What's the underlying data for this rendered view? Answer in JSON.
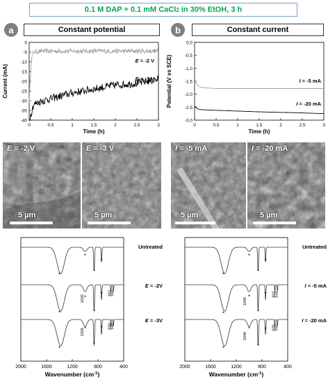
{
  "figure": {
    "title_main": "0.1 M DAP + 0.1 mM CaCl",
    "title_sub": "2",
    "title_rest": " in 30% EtOH, 3 h",
    "title_color": "#00a651"
  },
  "panel_a": {
    "letter": "a",
    "header": "Constant potential",
    "sem": [
      {
        "var": "E",
        "value": " = -2 V",
        "scale": "5 µm"
      },
      {
        "var": "E",
        "value": " = -3 V",
        "scale": "5 µm"
      }
    ],
    "ftir_curve_labels": [
      "Untreated",
      "E = -2V",
      "E = -3V"
    ],
    "ftir_annotations": {
      "peaks_2v": [
        "1026",
        "602",
        "560"
      ],
      "peaks_3v": [
        "1026",
        "600",
        "560"
      ]
    }
  },
  "panel_b": {
    "letter": "b",
    "header": "Constant current",
    "sem": [
      {
        "var": "I",
        "value": " = -5 mA",
        "scale": "5 µm"
      },
      {
        "var": "I",
        "value": " = -20 mA",
        "scale": "5 µm"
      }
    ],
    "ftir_curve_labels": [
      "Untreated",
      "I = -5 mA",
      "I = -20 mA"
    ],
    "ftir_annotations": {
      "peaks_5": [
        "1049",
        "602",
        "559"
      ],
      "peaks_20": [
        "1049",
        "600",
        "560"
      ]
    }
  },
  "chart_data": [
    {
      "type": "line",
      "title": "",
      "xlabel": "Time (h)",
      "ylabel": "Current (mA)",
      "xlim": [
        0,
        3
      ],
      "ylim": [
        -40,
        0
      ],
      "xticks": [
        "0",
        "0.5",
        "1",
        "1.5",
        "2",
        "2.5",
        "3"
      ],
      "yticks": [
        "0",
        "-5",
        "-10",
        "-15",
        "-20",
        "-25",
        "-30",
        "-35",
        "-40"
      ],
      "series": [
        {
          "name": "E = -2 V",
          "color": "#a0a0a0",
          "x": [
            0,
            0.05,
            0.1,
            0.3,
            0.5,
            1,
            1.5,
            2,
            2.5,
            3
          ],
          "y": [
            -30,
            -8,
            -5,
            -4.5,
            -4.5,
            -4.5,
            -4.5,
            -4.5,
            -4.5,
            -4.5
          ]
        },
        {
          "name": "E = -3 V",
          "color": "#000000",
          "x": [
            0,
            0.05,
            0.1,
            0.3,
            0.5,
            1,
            1.5,
            2,
            2.5,
            3
          ],
          "y": [
            -40,
            -36,
            -32,
            -30,
            -29,
            -26,
            -24,
            -22,
            -21,
            -19
          ]
        }
      ]
    },
    {
      "type": "line",
      "title": "",
      "xlabel": "Time (h)",
      "ylabel": "Potential (V vs SCE)",
      "xlim": [
        0,
        3
      ],
      "ylim": [
        -3,
        0
      ],
      "xticks": [
        "0",
        "0.5",
        "1",
        "1.5",
        "2",
        "2.5",
        "3"
      ],
      "yticks": [
        "0.0",
        "-0.5",
        "-1.0",
        "-1.5",
        "-2.0",
        "-2.5",
        "-3.0"
      ],
      "series": [
        {
          "name": "I = -5 mA",
          "color": "#a0a0a0",
          "x": [
            0,
            0.05,
            0.1,
            0.2,
            0.5,
            1,
            1.5,
            2,
            2.5,
            3
          ],
          "y": [
            -1.5,
            -1.6,
            -1.7,
            -1.75,
            -1.78,
            -1.78,
            -1.78,
            -1.78,
            -1.78,
            -1.78
          ]
        },
        {
          "name": "I = -20 mA",
          "color": "#000000",
          "x": [
            0,
            0.05,
            0.1,
            0.2,
            0.5,
            1,
            1.5,
            2,
            2.5,
            3
          ],
          "y": [
            -2.45,
            -2.55,
            -2.58,
            -2.6,
            -2.62,
            -2.65,
            -2.68,
            -2.7,
            -2.72,
            -2.75
          ]
        }
      ]
    },
    {
      "type": "line",
      "title": "",
      "xlabel": "Wavenumber (cm⁻¹)",
      "ylabel": "",
      "xlim": [
        2000,
        400
      ],
      "xticks": [
        "2000",
        "1600",
        "1200",
        "800",
        "400"
      ],
      "series": [
        {
          "name": "Untreated"
        },
        {
          "name": "E = -2V"
        },
        {
          "name": "E = -3V"
        }
      ]
    },
    {
      "type": "line",
      "title": "",
      "xlabel": "Wavenumber (cm⁻¹)",
      "ylabel": "",
      "xlim": [
        2000,
        400
      ],
      "xticks": [
        "2000",
        "1600",
        "1200",
        "800",
        "400"
      ],
      "series": [
        {
          "name": "Untreated"
        },
        {
          "name": "I = -5 mA"
        },
        {
          "name": "I = -20 mA"
        }
      ]
    }
  ]
}
